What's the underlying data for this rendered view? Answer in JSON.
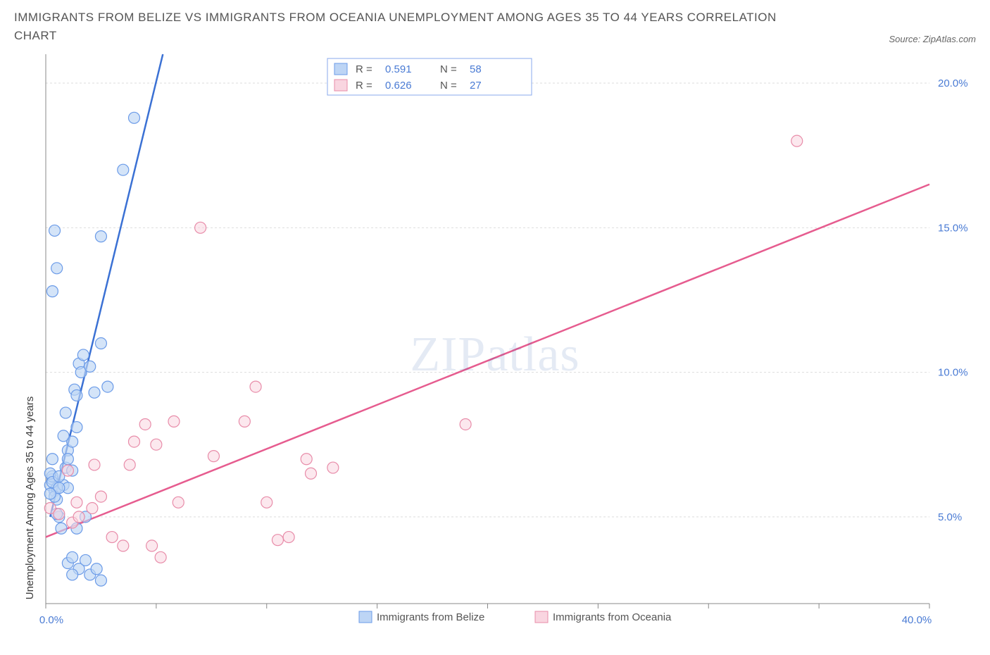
{
  "title": "IMMIGRANTS FROM BELIZE VS IMMIGRANTS FROM OCEANIA UNEMPLOYMENT AMONG AGES 35 TO 44 YEARS CORRELATION CHART",
  "source": "Source: ZipAtlas.com",
  "watermark_a": "ZIP",
  "watermark_b": "atlas",
  "y_axis_label": "Unemployment Among Ages 35 to 44 years",
  "chart": {
    "type": "scatter",
    "background_color": "#ffffff",
    "grid_color": "#dddddd",
    "axis_color": "#888888",
    "tick_label_color": "#4a7bd4",
    "xlim": [
      0,
      40
    ],
    "ylim": [
      2,
      21
    ],
    "x_ticks": [
      0,
      5,
      10,
      15,
      20,
      25,
      30,
      35,
      40
    ],
    "x_tick_labels": {
      "0": "0.0%",
      "40": "40.0%"
    },
    "y_ticks": [
      5,
      10,
      15,
      20
    ],
    "y_tick_labels": {
      "5": "5.0%",
      "10": "10.0%",
      "15": "15.0%",
      "20": "20.0%"
    },
    "y_grid_dashed": [
      5,
      10,
      15,
      20
    ],
    "marker_radius": 8,
    "marker_stroke_width": 1.2,
    "series": [
      {
        "name": "Immigrants from Belize",
        "fill": "#bdd5f5",
        "stroke": "#6b9be8",
        "fill_opacity": 0.65,
        "R": "0.591",
        "N": "58",
        "points": [
          [
            0.2,
            6.1
          ],
          [
            0.3,
            6.3
          ],
          [
            0.4,
            5.9
          ],
          [
            0.3,
            6.4
          ],
          [
            0.5,
            6.0
          ],
          [
            0.5,
            5.6
          ],
          [
            0.6,
            5.0
          ],
          [
            0.7,
            4.6
          ],
          [
            0.2,
            6.5
          ],
          [
            0.8,
            6.1
          ],
          [
            0.3,
            6.2
          ],
          [
            0.4,
            5.7
          ],
          [
            0.9,
            6.7
          ],
          [
            0.6,
            6.4
          ],
          [
            1.0,
            7.3
          ],
          [
            1.2,
            7.6
          ],
          [
            1.4,
            8.1
          ],
          [
            1.0,
            6.0
          ],
          [
            1.2,
            6.6
          ],
          [
            1.0,
            7.0
          ],
          [
            0.3,
            12.8
          ],
          [
            0.4,
            14.9
          ],
          [
            0.5,
            13.6
          ],
          [
            1.5,
            10.3
          ],
          [
            1.7,
            10.6
          ],
          [
            1.6,
            10.0
          ],
          [
            1.3,
            9.4
          ],
          [
            1.4,
            9.2
          ],
          [
            2.0,
            10.2
          ],
          [
            2.2,
            9.3
          ],
          [
            2.5,
            11.0
          ],
          [
            0.8,
            7.8
          ],
          [
            0.9,
            8.6
          ],
          [
            1.0,
            3.4
          ],
          [
            1.2,
            3.6
          ],
          [
            1.4,
            4.6
          ],
          [
            1.5,
            3.2
          ],
          [
            1.8,
            3.5
          ],
          [
            2.0,
            3.0
          ],
          [
            2.3,
            3.2
          ],
          [
            2.5,
            2.8
          ],
          [
            1.2,
            3.0
          ],
          [
            1.8,
            5.0
          ],
          [
            0.5,
            5.1
          ],
          [
            0.6,
            6.0
          ],
          [
            0.2,
            5.8
          ],
          [
            0.3,
            7.0
          ],
          [
            2.5,
            14.7
          ],
          [
            2.8,
            9.5
          ],
          [
            3.5,
            17.0
          ],
          [
            4.0,
            18.8
          ]
        ],
        "trend": {
          "x1": 0.2,
          "y1": 5.0,
          "x2": 5.3,
          "y2": 21.0,
          "stroke": "#3b71d4",
          "width": 2.5
        }
      },
      {
        "name": "Immigrants from Oceania",
        "fill": "#f9d5e0",
        "stroke": "#e88ca9",
        "fill_opacity": 0.55,
        "R": "0.626",
        "N": "27",
        "points": [
          [
            0.2,
            5.3
          ],
          [
            0.6,
            5.1
          ],
          [
            1.0,
            6.6
          ],
          [
            1.2,
            4.8
          ],
          [
            1.5,
            5.0
          ],
          [
            2.2,
            6.8
          ],
          [
            1.4,
            5.5
          ],
          [
            2.1,
            5.3
          ],
          [
            2.5,
            5.7
          ],
          [
            3.0,
            4.3
          ],
          [
            3.5,
            4.0
          ],
          [
            3.8,
            6.8
          ],
          [
            4.0,
            7.6
          ],
          [
            4.5,
            8.2
          ],
          [
            5.0,
            7.5
          ],
          [
            5.8,
            8.3
          ],
          [
            4.8,
            4.0
          ],
          [
            5.2,
            3.6
          ],
          [
            6.0,
            5.5
          ],
          [
            7.6,
            7.1
          ],
          [
            9.0,
            8.3
          ],
          [
            9.5,
            9.5
          ],
          [
            10.0,
            5.5
          ],
          [
            10.5,
            4.2
          ],
          [
            11.0,
            4.3
          ],
          [
            11.8,
            7.0
          ],
          [
            12.0,
            6.5
          ],
          [
            13.0,
            6.7
          ],
          [
            7.0,
            15.0
          ],
          [
            19.0,
            8.2
          ],
          [
            34.0,
            18.0
          ]
        ],
        "trend": {
          "x1": 0,
          "y1": 4.3,
          "x2": 40.0,
          "y2": 16.5,
          "stroke": "#e65c8f",
          "width": 2.5
        }
      }
    ],
    "legend": {
      "box": {
        "fill": "#ffffff",
        "stroke": "#88aaee"
      },
      "swatch_blue": {
        "fill": "#bdd5f5",
        "stroke": "#6b9be8"
      },
      "swatch_pink": {
        "fill": "#f9d5e0",
        "stroke": "#e88ca9"
      },
      "r_label": "R =",
      "n_label": "N ="
    },
    "bottom_legend": {
      "swatch_blue": {
        "fill": "#bdd5f5",
        "stroke": "#6b9be8"
      },
      "swatch_pink": {
        "fill": "#f9d5e0",
        "stroke": "#e88ca9"
      }
    }
  }
}
